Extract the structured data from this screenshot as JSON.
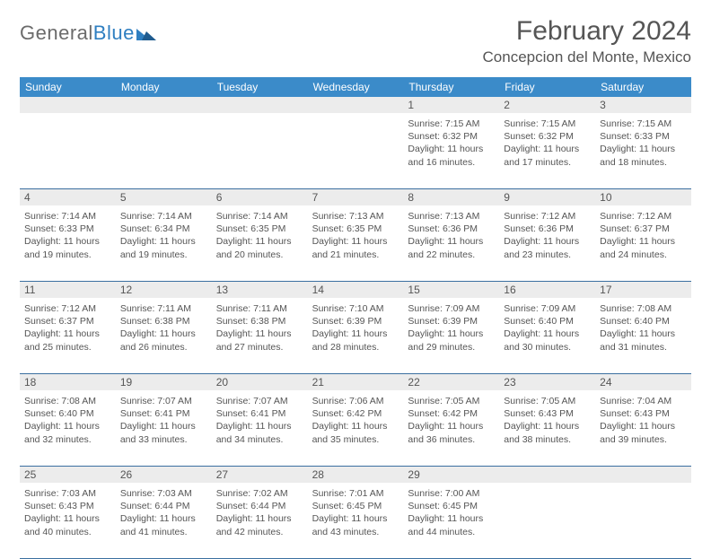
{
  "logo": {
    "text_gray": "General",
    "text_blue": "Blue"
  },
  "header": {
    "title": "February 2024",
    "location": "Concepcion del Monte, Mexico"
  },
  "colors": {
    "header_bg": "#3b8bc9",
    "row_divider": "#3b6fa0",
    "daynum_bg": "#ececec",
    "text": "#555555",
    "logo_blue": "#2f7fc1"
  },
  "weekdays": [
    "Sunday",
    "Monday",
    "Tuesday",
    "Wednesday",
    "Thursday",
    "Friday",
    "Saturday"
  ],
  "weeks": [
    [
      {
        "n": "",
        "sunrise": "",
        "sunset": "",
        "daylight": ""
      },
      {
        "n": "",
        "sunrise": "",
        "sunset": "",
        "daylight": ""
      },
      {
        "n": "",
        "sunrise": "",
        "sunset": "",
        "daylight": ""
      },
      {
        "n": "",
        "sunrise": "",
        "sunset": "",
        "daylight": ""
      },
      {
        "n": "1",
        "sunrise": "Sunrise: 7:15 AM",
        "sunset": "Sunset: 6:32 PM",
        "daylight": "Daylight: 11 hours and 16 minutes."
      },
      {
        "n": "2",
        "sunrise": "Sunrise: 7:15 AM",
        "sunset": "Sunset: 6:32 PM",
        "daylight": "Daylight: 11 hours and 17 minutes."
      },
      {
        "n": "3",
        "sunrise": "Sunrise: 7:15 AM",
        "sunset": "Sunset: 6:33 PM",
        "daylight": "Daylight: 11 hours and 18 minutes."
      }
    ],
    [
      {
        "n": "4",
        "sunrise": "Sunrise: 7:14 AM",
        "sunset": "Sunset: 6:33 PM",
        "daylight": "Daylight: 11 hours and 19 minutes."
      },
      {
        "n": "5",
        "sunrise": "Sunrise: 7:14 AM",
        "sunset": "Sunset: 6:34 PM",
        "daylight": "Daylight: 11 hours and 19 minutes."
      },
      {
        "n": "6",
        "sunrise": "Sunrise: 7:14 AM",
        "sunset": "Sunset: 6:35 PM",
        "daylight": "Daylight: 11 hours and 20 minutes."
      },
      {
        "n": "7",
        "sunrise": "Sunrise: 7:13 AM",
        "sunset": "Sunset: 6:35 PM",
        "daylight": "Daylight: 11 hours and 21 minutes."
      },
      {
        "n": "8",
        "sunrise": "Sunrise: 7:13 AM",
        "sunset": "Sunset: 6:36 PM",
        "daylight": "Daylight: 11 hours and 22 minutes."
      },
      {
        "n": "9",
        "sunrise": "Sunrise: 7:12 AM",
        "sunset": "Sunset: 6:36 PM",
        "daylight": "Daylight: 11 hours and 23 minutes."
      },
      {
        "n": "10",
        "sunrise": "Sunrise: 7:12 AM",
        "sunset": "Sunset: 6:37 PM",
        "daylight": "Daylight: 11 hours and 24 minutes."
      }
    ],
    [
      {
        "n": "11",
        "sunrise": "Sunrise: 7:12 AM",
        "sunset": "Sunset: 6:37 PM",
        "daylight": "Daylight: 11 hours and 25 minutes."
      },
      {
        "n": "12",
        "sunrise": "Sunrise: 7:11 AM",
        "sunset": "Sunset: 6:38 PM",
        "daylight": "Daylight: 11 hours and 26 minutes."
      },
      {
        "n": "13",
        "sunrise": "Sunrise: 7:11 AM",
        "sunset": "Sunset: 6:38 PM",
        "daylight": "Daylight: 11 hours and 27 minutes."
      },
      {
        "n": "14",
        "sunrise": "Sunrise: 7:10 AM",
        "sunset": "Sunset: 6:39 PM",
        "daylight": "Daylight: 11 hours and 28 minutes."
      },
      {
        "n": "15",
        "sunrise": "Sunrise: 7:09 AM",
        "sunset": "Sunset: 6:39 PM",
        "daylight": "Daylight: 11 hours and 29 minutes."
      },
      {
        "n": "16",
        "sunrise": "Sunrise: 7:09 AM",
        "sunset": "Sunset: 6:40 PM",
        "daylight": "Daylight: 11 hours and 30 minutes."
      },
      {
        "n": "17",
        "sunrise": "Sunrise: 7:08 AM",
        "sunset": "Sunset: 6:40 PM",
        "daylight": "Daylight: 11 hours and 31 minutes."
      }
    ],
    [
      {
        "n": "18",
        "sunrise": "Sunrise: 7:08 AM",
        "sunset": "Sunset: 6:40 PM",
        "daylight": "Daylight: 11 hours and 32 minutes."
      },
      {
        "n": "19",
        "sunrise": "Sunrise: 7:07 AM",
        "sunset": "Sunset: 6:41 PM",
        "daylight": "Daylight: 11 hours and 33 minutes."
      },
      {
        "n": "20",
        "sunrise": "Sunrise: 7:07 AM",
        "sunset": "Sunset: 6:41 PM",
        "daylight": "Daylight: 11 hours and 34 minutes."
      },
      {
        "n": "21",
        "sunrise": "Sunrise: 7:06 AM",
        "sunset": "Sunset: 6:42 PM",
        "daylight": "Daylight: 11 hours and 35 minutes."
      },
      {
        "n": "22",
        "sunrise": "Sunrise: 7:05 AM",
        "sunset": "Sunset: 6:42 PM",
        "daylight": "Daylight: 11 hours and 36 minutes."
      },
      {
        "n": "23",
        "sunrise": "Sunrise: 7:05 AM",
        "sunset": "Sunset: 6:43 PM",
        "daylight": "Daylight: 11 hours and 38 minutes."
      },
      {
        "n": "24",
        "sunrise": "Sunrise: 7:04 AM",
        "sunset": "Sunset: 6:43 PM",
        "daylight": "Daylight: 11 hours and 39 minutes."
      }
    ],
    [
      {
        "n": "25",
        "sunrise": "Sunrise: 7:03 AM",
        "sunset": "Sunset: 6:43 PM",
        "daylight": "Daylight: 11 hours and 40 minutes."
      },
      {
        "n": "26",
        "sunrise": "Sunrise: 7:03 AM",
        "sunset": "Sunset: 6:44 PM",
        "daylight": "Daylight: 11 hours and 41 minutes."
      },
      {
        "n": "27",
        "sunrise": "Sunrise: 7:02 AM",
        "sunset": "Sunset: 6:44 PM",
        "daylight": "Daylight: 11 hours and 42 minutes."
      },
      {
        "n": "28",
        "sunrise": "Sunrise: 7:01 AM",
        "sunset": "Sunset: 6:45 PM",
        "daylight": "Daylight: 11 hours and 43 minutes."
      },
      {
        "n": "29",
        "sunrise": "Sunrise: 7:00 AM",
        "sunset": "Sunset: 6:45 PM",
        "daylight": "Daylight: 11 hours and 44 minutes."
      },
      {
        "n": "",
        "sunrise": "",
        "sunset": "",
        "daylight": ""
      },
      {
        "n": "",
        "sunrise": "",
        "sunset": "",
        "daylight": ""
      }
    ]
  ]
}
